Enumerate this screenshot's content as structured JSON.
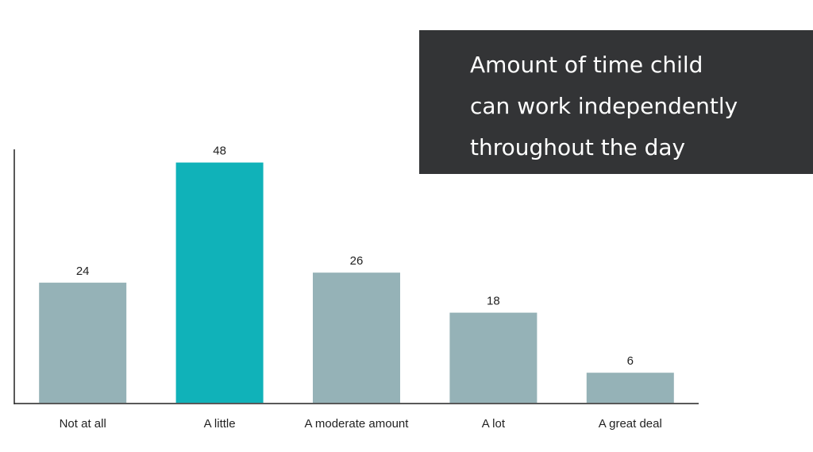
{
  "chart_data": {
    "type": "bar",
    "title": "Amount of time child\ncan work independently\nthroughout the day",
    "categories": [
      "Not at all",
      "A little",
      "A moderate amount",
      "A lot",
      "A great deal"
    ],
    "values": [
      24,
      48,
      26,
      18,
      6
    ],
    "colors": [
      "#95b2b7",
      "#10b2b9",
      "#95b2b7",
      "#95b2b7",
      "#95b2b7"
    ],
    "ylim": [
      0,
      50
    ]
  }
}
